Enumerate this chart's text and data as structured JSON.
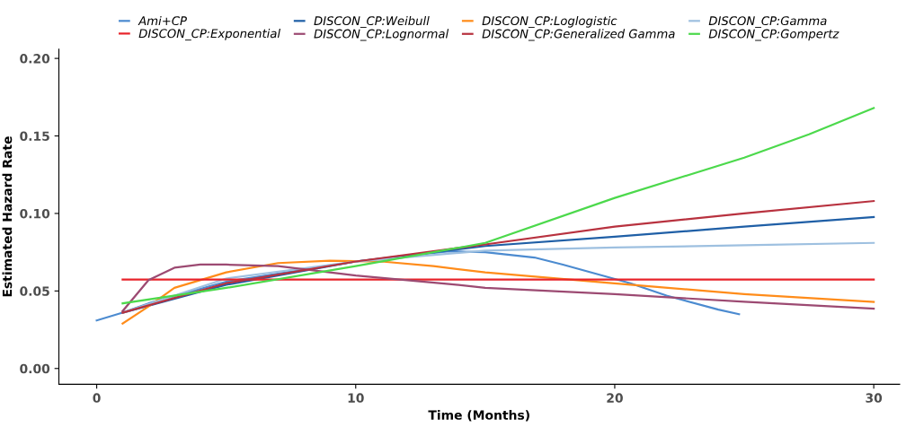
{
  "chart_data": {
    "type": "line",
    "xlabel": "Time (Months)",
    "ylabel": "Estimated Hazard Rate",
    "xlim": [
      -1.46,
      31
    ],
    "ylim": [
      -0.0102,
      0.206
    ],
    "xticks": [
      0,
      10,
      20,
      30
    ],
    "yticks": [
      {
        "value": 0,
        "label": "0.00"
      },
      {
        "value": 0.05,
        "label": "0.05"
      },
      {
        "value": 0.1,
        "label": "0.10"
      },
      {
        "value": 0.15,
        "label": "0.15"
      },
      {
        "value": 0.2,
        "label": "0.20"
      }
    ],
    "grid": false,
    "legend": "top",
    "line_style": "solid",
    "marker": "none",
    "series": [
      {
        "name": "Ami+CP",
        "color": "#4c8bd0",
        "x": [
          0,
          1,
          2,
          5,
          10,
          13.6,
          15,
          16.9,
          18,
          20.6,
          22,
          24,
          24.8
        ],
        "values": [
          0.031,
          0.036,
          0.042,
          0.056,
          0.069,
          0.0756,
          0.075,
          0.0716,
          0.067,
          0.055,
          0.047,
          0.038,
          0.035
        ]
      },
      {
        "name": "DISCON_CP:Weibull",
        "color": "#1f5fa6",
        "x": [
          1,
          5,
          10,
          15,
          20,
          25,
          30
        ],
        "values": [
          0.036,
          0.054,
          0.069,
          0.079,
          0.085,
          0.0915,
          0.0977
        ]
      },
      {
        "name": "DISCON_CP:Loglogistic",
        "color": "#ff8c1a",
        "x": [
          1,
          2,
          3,
          5,
          7,
          9,
          11,
          13,
          15,
          20.6,
          25,
          30
        ],
        "values": [
          0.029,
          0.04,
          0.052,
          0.062,
          0.068,
          0.0695,
          0.069,
          0.066,
          0.062,
          0.054,
          0.048,
          0.043
        ]
      },
      {
        "name": "DISCON_CP:Gamma",
        "color": "#9ec0e0",
        "x": [
          1,
          5,
          10,
          15,
          20,
          25,
          30
        ],
        "values": [
          0.036,
          0.058,
          0.069,
          0.076,
          0.078,
          0.0795,
          0.081
        ]
      },
      {
        "name": "DISCON_CP:Exponential",
        "color": "#e8232a",
        "x": [
          1,
          30
        ],
        "values": [
          0.0574,
          0.0574
        ]
      },
      {
        "name": "DISCON_CP:Lognormal",
        "color": "#9c4a72",
        "x": [
          1,
          2,
          3,
          4,
          5,
          7,
          10,
          13.6,
          15,
          20,
          25,
          30
        ],
        "values": [
          0.037,
          0.057,
          0.065,
          0.067,
          0.067,
          0.066,
          0.06,
          0.0545,
          0.052,
          0.048,
          0.043,
          0.0386
        ]
      },
      {
        "name": "DISCON_CP:Generalized Gamma",
        "color": "#b8323f",
        "x": [
          1,
          5,
          10,
          15,
          20,
          25,
          30
        ],
        "values": [
          0.036,
          0.055,
          0.069,
          0.08,
          0.0915,
          0.1,
          0.108
        ]
      },
      {
        "name": "DISCON_CP:Gompertz",
        "color": "#4cd94c",
        "x": [
          1,
          5,
          10,
          15,
          20,
          25,
          27.5,
          30
        ],
        "values": [
          0.042,
          0.052,
          0.066,
          0.081,
          0.11,
          0.136,
          0.151,
          0.168
        ]
      }
    ]
  }
}
